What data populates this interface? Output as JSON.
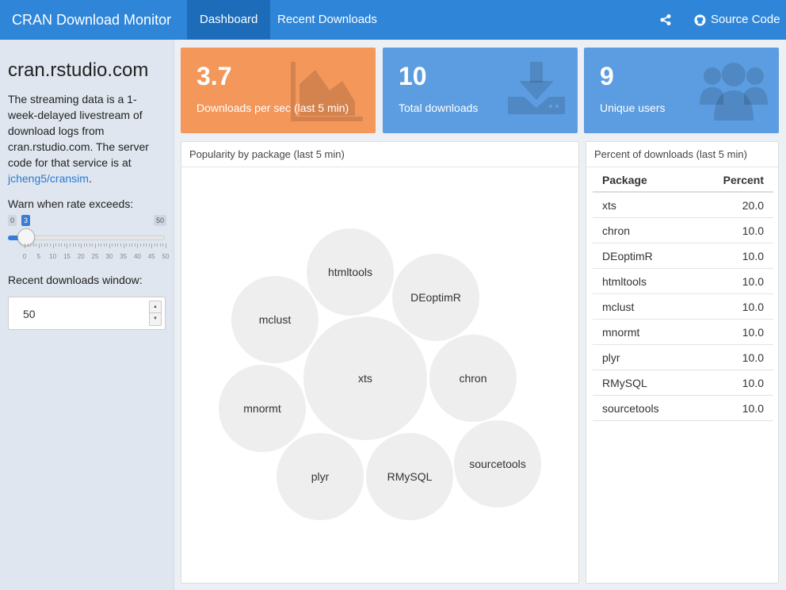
{
  "navbar": {
    "brand": "CRAN Download Monitor",
    "tabs": [
      {
        "label": "Dashboard",
        "active": true
      },
      {
        "label": "Recent Downloads",
        "active": false
      }
    ],
    "share_icon": "share-icon",
    "source_code": {
      "icon": "github-icon",
      "label": "Source Code"
    }
  },
  "sidebar": {
    "title": "cran.rstudio.com",
    "description": "The streaming data is a 1-week-delayed livestream of download logs from cran.rstudio.com. The server code for that service is at ",
    "link": "jcheng5/cransim",
    "period": ".",
    "rate_label": "Warn when rate exceeds:",
    "slider": {
      "min": "0",
      "max": "50",
      "value": "3",
      "ticks": [
        "0",
        "5",
        "10",
        "15",
        "20",
        "25",
        "30",
        "35",
        "40",
        "45",
        "50"
      ]
    },
    "window_label": "Recent downloads window:",
    "window_value": "50"
  },
  "value_boxes": [
    {
      "value": "3.7",
      "label": "Downloads per sec (last 5 min)",
      "icon": "area-chart-icon",
      "color": "#f4975a"
    },
    {
      "value": "10",
      "label": "Total downloads",
      "icon": "download-icon",
      "color": "#5b9de0"
    },
    {
      "value": "9",
      "label": "Unique users",
      "icon": "users-icon",
      "color": "#5b9de0"
    }
  ],
  "popularity": {
    "title": "Popularity by package (last 5 min)",
    "bubbles": [
      "htmltools",
      "DEoptimR",
      "mclust",
      "xts",
      "chron",
      "mnormt",
      "plyr",
      "RMySQL",
      "sourcetools"
    ]
  },
  "percent_table": {
    "title": "Percent of downloads (last 5 min)",
    "headers": [
      "Package",
      "Percent"
    ],
    "rows": [
      [
        "xts",
        "20.0"
      ],
      [
        "chron",
        "10.0"
      ],
      [
        "DEoptimR",
        "10.0"
      ],
      [
        "htmltools",
        "10.0"
      ],
      [
        "mclust",
        "10.0"
      ],
      [
        "mnormt",
        "10.0"
      ],
      [
        "plyr",
        "10.0"
      ],
      [
        "RMySQL",
        "10.0"
      ],
      [
        "sourcetools",
        "10.0"
      ]
    ]
  }
}
